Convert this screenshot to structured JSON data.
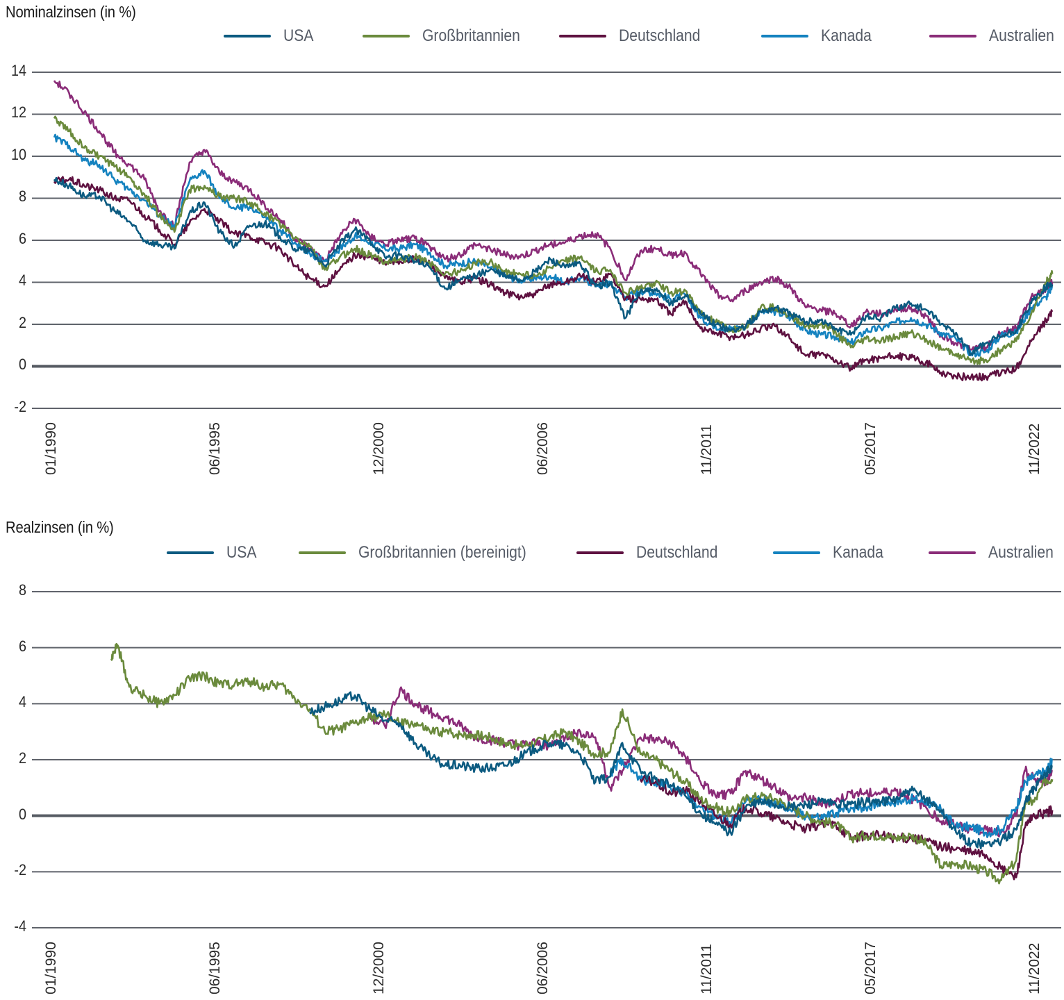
{
  "chart_data": [
    {
      "type": "line",
      "title": "Nominalzinsen (in %)",
      "xlabel": "",
      "ylabel": "",
      "ylim": [
        -2,
        14
      ],
      "yticks": [
        14,
        12,
        10,
        8,
        6,
        4,
        2,
        0,
        -2
      ],
      "xticks": [
        "01/1990",
        "06/1995",
        "12/2000",
        "06/2006",
        "11/2011",
        "05/2017",
        "11/2022"
      ],
      "grid": true,
      "legend_position": "top",
      "x": [
        1990.0,
        1990.5,
        1991.0,
        1991.5,
        1992.0,
        1992.5,
        1993.0,
        1993.5,
        1994.0,
        1994.5,
        1995.0,
        1995.5,
        1996.0,
        1996.5,
        1997.0,
        1997.5,
        1998.0,
        1998.5,
        1999.0,
        1999.5,
        2000.0,
        2000.5,
        2001.0,
        2001.5,
        2002.0,
        2002.5,
        2003.0,
        2003.5,
        2004.0,
        2004.5,
        2005.0,
        2005.5,
        2006.0,
        2006.5,
        2007.0,
        2007.5,
        2008.0,
        2008.5,
        2009.0,
        2009.5,
        2010.0,
        2010.5,
        2011.0,
        2011.5,
        2012.0,
        2012.5,
        2013.0,
        2013.5,
        2014.0,
        2014.5,
        2015.0,
        2015.5,
        2016.0,
        2016.5,
        2017.0,
        2017.5,
        2018.0,
        2018.5,
        2019.0,
        2019.5,
        2020.0,
        2020.5,
        2021.0,
        2021.5,
        2022.0,
        2022.5,
        2023.0,
        2023.2
      ],
      "series": [
        {
          "name": "USA",
          "color": "#0b5a80",
          "values": [
            8.9,
            8.6,
            8.1,
            8.1,
            7.4,
            6.9,
            6.0,
            5.8,
            5.6,
            7.3,
            7.8,
            6.4,
            5.7,
            6.7,
            6.8,
            6.2,
            5.6,
            5.5,
            4.8,
            5.8,
            6.5,
            6.0,
            5.2,
            5.3,
            5.0,
            4.7,
            3.7,
            4.1,
            4.3,
            4.6,
            4.3,
            4.1,
            4.5,
            5.1,
            4.7,
            4.9,
            3.8,
            4.0,
            2.3,
            3.6,
            3.6,
            3.0,
            3.4,
            2.5,
            2.0,
            1.7,
            1.9,
            2.6,
            2.8,
            2.5,
            2.1,
            2.2,
            1.8,
            1.5,
            2.4,
            2.3,
            2.8,
            3.0,
            2.7,
            2.0,
            1.6,
            0.6,
            1.1,
            1.4,
            1.7,
            3.0,
            3.8,
            3.9
          ]
        },
        {
          "name": "Großbritannien",
          "color": "#6a8a3c",
          "values": [
            11.8,
            11.2,
            10.4,
            10.0,
            9.5,
            9.0,
            8.2,
            7.2,
            6.4,
            8.4,
            8.6,
            8.1,
            8.0,
            7.8,
            7.3,
            6.8,
            6.1,
            5.7,
            4.6,
            5.2,
            5.6,
            5.3,
            5.0,
            5.1,
            5.2,
            4.9,
            4.4,
            4.5,
            4.9,
            5.0,
            4.5,
            4.4,
            4.3,
            4.7,
            5.0,
            5.2,
            4.5,
            4.6,
            3.5,
            3.7,
            4.0,
            3.5,
            3.6,
            2.5,
            2.1,
            1.7,
            1.9,
            2.8,
            2.8,
            2.4,
            1.9,
            2.0,
            1.6,
            0.9,
            1.3,
            1.2,
            1.4,
            1.6,
            1.3,
            0.8,
            0.6,
            0.2,
            0.3,
            0.8,
            1.2,
            2.5,
            4.0,
            4.4
          ]
        },
        {
          "name": "Deutschland",
          "color": "#5e1140",
          "values": [
            8.8,
            8.9,
            8.6,
            8.4,
            8.0,
            7.9,
            7.2,
            6.5,
            5.8,
            6.8,
            7.5,
            6.9,
            6.3,
            6.2,
            5.9,
            5.6,
            4.8,
            4.2,
            3.8,
            4.6,
            5.3,
            5.2,
            4.9,
            5.0,
            5.1,
            4.9,
            4.2,
            4.0,
            4.2,
            3.9,
            3.5,
            3.3,
            3.4,
            3.9,
            4.0,
            4.3,
            4.0,
            4.4,
            3.2,
            3.2,
            3.2,
            2.5,
            3.1,
            1.8,
            1.6,
            1.4,
            1.5,
            1.8,
            1.9,
            1.3,
            0.5,
            0.6,
            0.3,
            -0.1,
            0.3,
            0.4,
            0.5,
            0.4,
            0.2,
            -0.3,
            -0.5,
            -0.5,
            -0.5,
            -0.3,
            -0.1,
            1.2,
            2.2,
            2.6
          ]
        },
        {
          "name": "Kanada",
          "color": "#1482bf",
          "values": [
            10.9,
            10.5,
            9.8,
            9.6,
            8.9,
            8.4,
            7.9,
            7.2,
            6.6,
            8.8,
            9.3,
            8.0,
            7.5,
            7.6,
            7.1,
            6.5,
            5.9,
            5.4,
            5.0,
            5.6,
            6.2,
            5.9,
            5.6,
            5.6,
            5.8,
            5.4,
            4.8,
            4.9,
            5.0,
            4.7,
            4.3,
            4.1,
            4.2,
            4.3,
            4.0,
            4.2,
            3.9,
            3.9,
            3.3,
            3.6,
            3.5,
            3.2,
            3.4,
            2.3,
            1.9,
            1.8,
            1.9,
            2.6,
            2.6,
            2.3,
            1.7,
            1.5,
            1.4,
            1.1,
            1.7,
            1.8,
            2.1,
            2.3,
            2.0,
            1.6,
            1.3,
            0.6,
            0.7,
            1.5,
            1.6,
            2.8,
            3.3,
            3.8
          ]
        },
        {
          "name": "Australien",
          "color": "#8a2c78",
          "values": [
            13.6,
            13.0,
            12.1,
            11.2,
            10.2,
            9.6,
            8.9,
            7.4,
            6.7,
            9.7,
            10.3,
            9.2,
            8.8,
            8.4,
            7.7,
            7.0,
            6.1,
            5.6,
            5.0,
            6.2,
            7.0,
            6.2,
            5.8,
            6.0,
            6.1,
            5.7,
            5.1,
            5.3,
            5.8,
            5.6,
            5.3,
            5.2,
            5.5,
            5.8,
            5.9,
            6.2,
            6.3,
            5.6,
            4.1,
            5.5,
            5.6,
            5.3,
            5.4,
            4.4,
            3.5,
            3.1,
            3.6,
            4.0,
            4.2,
            3.7,
            2.8,
            2.7,
            2.5,
            1.9,
            2.6,
            2.5,
            2.7,
            2.8,
            2.4,
            1.5,
            1.1,
            0.8,
            0.9,
            1.6,
            1.8,
            3.3,
            3.7,
            4.0
          ]
        }
      ]
    },
    {
      "type": "line",
      "title": "Realzinsen (in %)",
      "xlabel": "",
      "ylabel": "",
      "ylim": [
        -4,
        8
      ],
      "yticks": [
        8,
        6,
        4,
        2,
        0,
        -2,
        -4
      ],
      "xticks": [
        "01/1990",
        "06/1995",
        "12/2000",
        "06/2006",
        "11/2011",
        "05/2017",
        "11/2022"
      ],
      "grid": true,
      "legend_position": "top",
      "x": [
        1991.9,
        1992.1,
        1992.5,
        1993.0,
        1993.5,
        1994.0,
        1994.5,
        1995.0,
        1995.5,
        1996.0,
        1996.5,
        1997.0,
        1997.5,
        1998.0,
        1998.5,
        1999.0,
        1999.5,
        2000.0,
        2000.5,
        2001.0,
        2001.5,
        2002.0,
        2002.5,
        2003.0,
        2003.5,
        2004.0,
        2004.5,
        2005.0,
        2005.5,
        2006.0,
        2006.5,
        2007.0,
        2007.5,
        2008.0,
        2008.5,
        2008.9,
        2009.5,
        2010.0,
        2010.5,
        2011.0,
        2011.5,
        2012.0,
        2012.5,
        2013.0,
        2013.5,
        2014.0,
        2014.5,
        2015.0,
        2015.5,
        2016.0,
        2016.5,
        2017.0,
        2017.5,
        2018.0,
        2018.5,
        2019.0,
        2019.5,
        2020.0,
        2020.5,
        2021.0,
        2021.5,
        2022.0,
        2022.3,
        2022.6,
        2023.0,
        2023.2
      ],
      "series": [
        {
          "name": "USA",
          "color": "#0b5a80",
          "values": [
            null,
            null,
            null,
            null,
            null,
            null,
            null,
            null,
            null,
            null,
            null,
            null,
            null,
            null,
            3.7,
            3.9,
            4.1,
            4.3,
            3.8,
            3.4,
            3.3,
            2.6,
            2.1,
            1.8,
            1.8,
            1.7,
            1.7,
            1.8,
            2.1,
            2.4,
            2.6,
            2.5,
            2.2,
            1.2,
            1.4,
            2.6,
            1.6,
            1.3,
            1.1,
            0.7,
            0.1,
            -0.3,
            -0.6,
            0.3,
            0.5,
            0.4,
            0.3,
            0.4,
            0.5,
            0.4,
            0.4,
            0.5,
            0.5,
            0.6,
            0.9,
            0.6,
            0.2,
            -0.6,
            -1.0,
            -1.0,
            -0.9,
            -0.5,
            0.5,
            1.0,
            1.5,
            1.8
          ]
        },
        {
          "name": "Großbritannien (bereinigt)",
          "color": "#6a8a3c",
          "values": [
            5.6,
            6.1,
            4.6,
            4.3,
            4.0,
            4.3,
            4.9,
            5.0,
            4.7,
            4.7,
            4.8,
            4.6,
            4.7,
            4.2,
            3.8,
            3.0,
            3.1,
            3.3,
            3.5,
            3.6,
            3.3,
            3.3,
            3.0,
            3.0,
            2.9,
            2.9,
            2.8,
            2.6,
            2.5,
            2.6,
            2.8,
            3.0,
            2.6,
            2.2,
            2.3,
            3.8,
            2.2,
            2.0,
            1.6,
            1.2,
            0.6,
            0.3,
            0.1,
            0.6,
            0.7,
            0.6,
            0.3,
            0.0,
            -0.2,
            -0.3,
            -0.8,
            -0.7,
            -0.7,
            -0.8,
            -0.7,
            -1.0,
            -1.8,
            -1.7,
            -1.8,
            -2.0,
            -2.3,
            -1.6,
            0.5,
            0.5,
            1.3,
            1.3
          ]
        },
        {
          "name": "Deutschland",
          "color": "#5e1140",
          "values": [
            null,
            null,
            null,
            null,
            null,
            null,
            null,
            null,
            null,
            null,
            null,
            null,
            null,
            null,
            null,
            null,
            null,
            null,
            null,
            null,
            null,
            null,
            null,
            null,
            null,
            null,
            null,
            null,
            null,
            null,
            null,
            null,
            null,
            null,
            null,
            null,
            1.3,
            1.2,
            0.8,
            0.9,
            0.5,
            0.0,
            -0.3,
            0.3,
            0.1,
            -0.1,
            -0.3,
            -0.5,
            -0.3,
            -0.3,
            -0.8,
            -0.7,
            -0.7,
            -0.8,
            -0.8,
            -0.9,
            -1.1,
            -1.2,
            -1.3,
            -1.4,
            -1.9,
            -2.2,
            -0.4,
            0.0,
            0.1,
            0.2
          ]
        },
        {
          "name": "Kanada",
          "color": "#1482bf",
          "values": [
            null,
            null,
            null,
            null,
            null,
            null,
            null,
            null,
            null,
            null,
            null,
            null,
            null,
            null,
            null,
            null,
            null,
            null,
            null,
            null,
            null,
            null,
            null,
            null,
            null,
            null,
            null,
            null,
            null,
            null,
            null,
            null,
            null,
            null,
            1.5,
            2.0,
            1.3,
            1.2,
            1.0,
            0.8,
            0.3,
            0.0,
            -0.3,
            0.5,
            0.6,
            0.4,
            0.2,
            0.0,
            -0.1,
            0.1,
            0.3,
            0.3,
            0.5,
            0.5,
            0.6,
            0.5,
            0.2,
            -0.4,
            -0.4,
            -0.6,
            -0.5,
            0.3,
            1.2,
            1.4,
            1.6,
            2.0
          ]
        },
        {
          "name": "Australien",
          "color": "#8a2c78",
          "values": [
            null,
            null,
            null,
            null,
            null,
            null,
            null,
            null,
            null,
            null,
            null,
            null,
            null,
            null,
            null,
            null,
            null,
            null,
            3.5,
            3.2,
            4.5,
            4.0,
            3.7,
            3.5,
            3.2,
            2.8,
            2.7,
            2.6,
            2.5,
            2.6,
            2.5,
            2.8,
            3.0,
            2.8,
            1.0,
            1.6,
            2.8,
            2.7,
            2.6,
            2.1,
            1.2,
            0.7,
            0.8,
            1.6,
            1.3,
            1.0,
            0.6,
            0.7,
            0.4,
            0.5,
            0.8,
            0.8,
            0.8,
            0.9,
            0.6,
            0.3,
            -0.2,
            -0.3,
            -0.5,
            -0.5,
            -0.6,
            0.0,
            1.6,
            1.3,
            1.2,
            1.6
          ]
        }
      ]
    }
  ],
  "charts": {
    "nominal": {
      "title": "Nominalzinsen (in %)",
      "legend": [
        "USA",
        "Großbritannien",
        "Deutschland",
        "Kanada",
        "Australien"
      ],
      "yticks": [
        "14",
        "12",
        "10",
        "8",
        "6",
        "4",
        "2",
        "0",
        "-2"
      ],
      "xticks": [
        "01/1990",
        "06/1995",
        "12/2000",
        "06/2006",
        "11/2011",
        "05/2017",
        "11/2022"
      ]
    },
    "real": {
      "title": "Realzinsen (in %)",
      "legend": [
        "USA",
        "Großbritannien (bereinigt)",
        "Deutschland",
        "Kanada",
        "Australien"
      ],
      "yticks": [
        "8",
        "6",
        "4",
        "2",
        "0",
        "-2",
        "-4"
      ],
      "xticks": [
        "01/1990",
        "06/1995",
        "12/2000",
        "06/2006",
        "11/2011",
        "05/2017",
        "11/2022"
      ]
    }
  },
  "colors": {
    "USA": "#0b5a80",
    "Großbritannien": "#6a8a3c",
    "Deutschland": "#5e1140",
    "Kanada": "#1482bf",
    "Australien": "#8a2c78",
    "grid": "#5f636b",
    "zero_line": "#555a62"
  }
}
